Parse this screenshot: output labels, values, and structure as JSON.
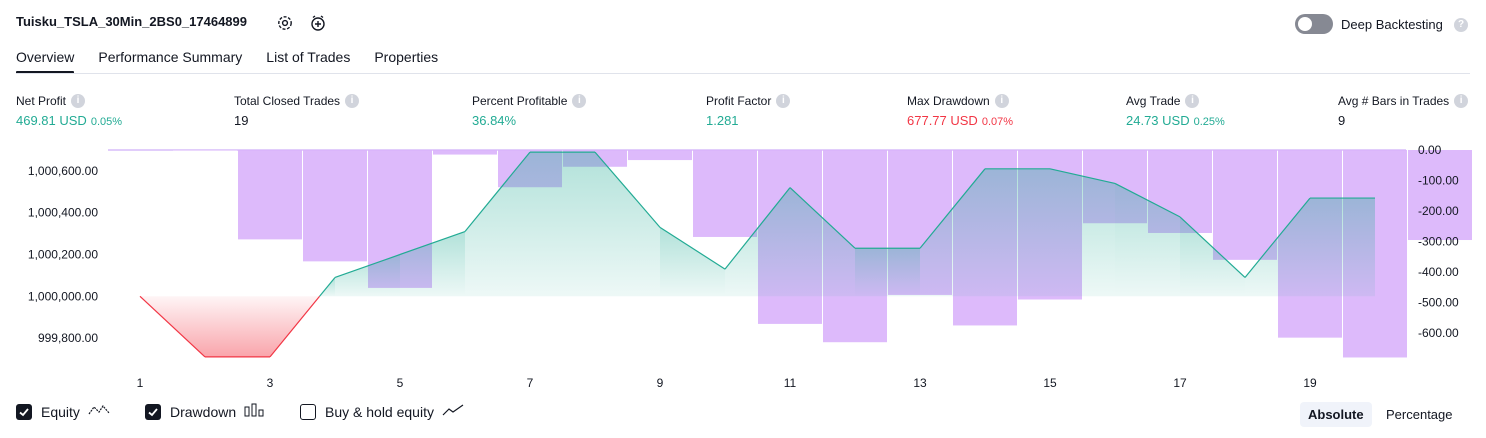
{
  "header": {
    "title": "Tuisku_TSLA_30Min_2BS0_17464899",
    "deep_backtesting_label": "Deep Backtesting",
    "help_glyph": "?"
  },
  "tabs": [
    {
      "label": "Overview",
      "active": true
    },
    {
      "label": "Performance Summary",
      "active": false
    },
    {
      "label": "List of Trades",
      "active": false
    },
    {
      "label": "Properties",
      "active": false
    }
  ],
  "metrics": [
    {
      "label": "Net Profit",
      "value": "469.81 USD",
      "pct": "0.05%",
      "color": "#22ab94"
    },
    {
      "label": "Total Closed Trades",
      "value": "19",
      "pct": "",
      "color": "#131722"
    },
    {
      "label": "Percent Profitable",
      "value": "36.84%",
      "pct": "",
      "color": "#22ab94"
    },
    {
      "label": "Profit Factor",
      "value": "1.281",
      "pct": "",
      "color": "#22ab94"
    },
    {
      "label": "Max Drawdown",
      "value": "677.77 USD",
      "pct": "0.07%",
      "color": "#f23645"
    },
    {
      "label": "Avg Trade",
      "value": "24.73 USD",
      "pct": "0.25%",
      "color": "#22ab94"
    },
    {
      "label": "Avg # Bars in Trades",
      "value": "9",
      "pct": "",
      "color": "#131722"
    }
  ],
  "chart_data": {
    "type": "line",
    "x_ticks": [
      "1",
      "3",
      "5",
      "7",
      "9",
      "11",
      "13",
      "15",
      "17",
      "19"
    ],
    "left_axis_ticks": [
      "1,000,600.00",
      "1,000,400.00",
      "1,000,200.00",
      "1,000,000.00",
      "999,800.00"
    ],
    "right_axis_ticks": [
      "0.00",
      "-100.00",
      "-200.00",
      "-300.00",
      "-400.00",
      "-500.00",
      "-600.00"
    ],
    "equity_baseline": 1000000,
    "equity_ylim": [
      999700,
      1000700
    ],
    "drawdown_ylim": [
      -685,
      0
    ],
    "series": [
      {
        "name": "Equity",
        "x": [
          1,
          2,
          3,
          4,
          5,
          6,
          7,
          8,
          9,
          10,
          11,
          12,
          13,
          14,
          15,
          16,
          17,
          18,
          19,
          20
        ],
        "values": [
          1000000,
          999710,
          999710,
          1000090,
          1000200,
          1000310,
          1000690,
          1000690,
          1000330,
          1000130,
          1000520,
          1000230,
          1000230,
          1000610,
          1000610,
          1000540,
          1000380,
          1000090,
          1000470,
          1000470
        ],
        "color": "#22ab94"
      },
      {
        "name": "Drawdown",
        "x": [
          1,
          2,
          3,
          4,
          5,
          6,
          7,
          8,
          9,
          10,
          11,
          12,
          13,
          14,
          15,
          16,
          17,
          18,
          19,
          20
        ],
        "values": [
          0,
          -293,
          -365,
          -452,
          -15,
          -122,
          -55,
          -33,
          -285,
          -570,
          -630,
          -475,
          -575,
          -490,
          -240,
          -272,
          -360,
          -615,
          -680,
          -295
        ],
        "color": "#c39bf7"
      }
    ]
  },
  "legend": {
    "equity_label": "Equity",
    "drawdown_label": "Drawdown",
    "buy_hold_label": "Buy & hold equity",
    "absolute_label": "Absolute",
    "percentage_label": "Percentage"
  }
}
